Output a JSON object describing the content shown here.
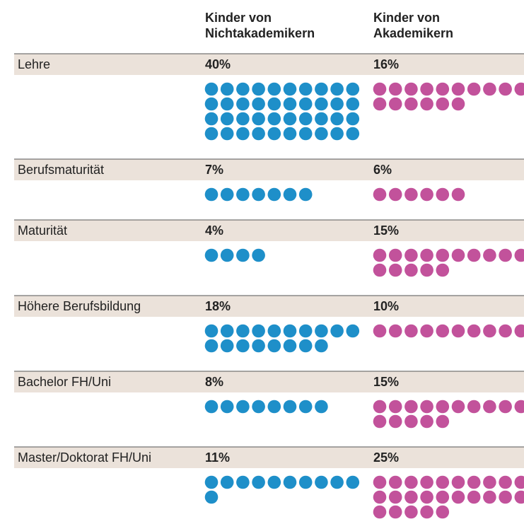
{
  "chart_data": {
    "type": "dot",
    "categories": [
      "Lehre",
      "Berufsmaturität",
      "Maturität",
      "Höhere Berufsbildung",
      "Bachelor FH/Uni",
      "Master/Doktorat FH/Uni"
    ],
    "series": [
      {
        "name": "Kinder von Nichtakademikern",
        "color": "#1e8fc9",
        "values": [
          40,
          7,
          4,
          18,
          8,
          11
        ],
        "value_labels": [
          "40%",
          "7%",
          "4%",
          "18%",
          "8%",
          "11%"
        ]
      },
      {
        "name": "Kinder von Akademikern",
        "color": "#c2529b",
        "values": [
          16,
          6,
          15,
          10,
          15,
          25
        ],
        "value_labels": [
          "16%",
          "6%",
          "15%",
          "10%",
          "15%",
          "25%"
        ]
      }
    ]
  }
}
